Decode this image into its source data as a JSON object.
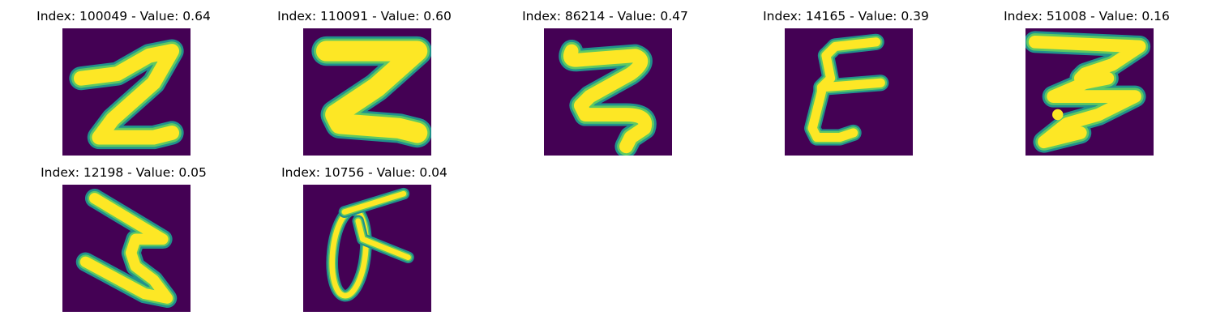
{
  "figure": {
    "colormap": {
      "background": "#440154",
      "edge": "#21918c",
      "mid": "#5ec962",
      "stroke": "#fde725"
    },
    "panels": [
      {
        "title": "Index: 100049 - Value: 0.64",
        "glyph": "z-cursive-icon"
      },
      {
        "title": "Index: 110091 - Value: 0.60",
        "glyph": "z-bold-icon"
      },
      {
        "title": "Index: 86214 - Value: 0.47",
        "glyph": "z-curly-icon"
      },
      {
        "title": "Index: 14165 - Value: 0.39",
        "glyph": "e-script-icon"
      },
      {
        "title": "Index: 51008 - Value: 0.16",
        "glyph": "three-flat-icon"
      },
      {
        "title": "Index: 12198 - Value: 0.05",
        "glyph": "z-slanted-icon"
      },
      {
        "title": "Index: 10756 - Value: 0.04",
        "glyph": "oval-with-slash-icon"
      }
    ]
  }
}
